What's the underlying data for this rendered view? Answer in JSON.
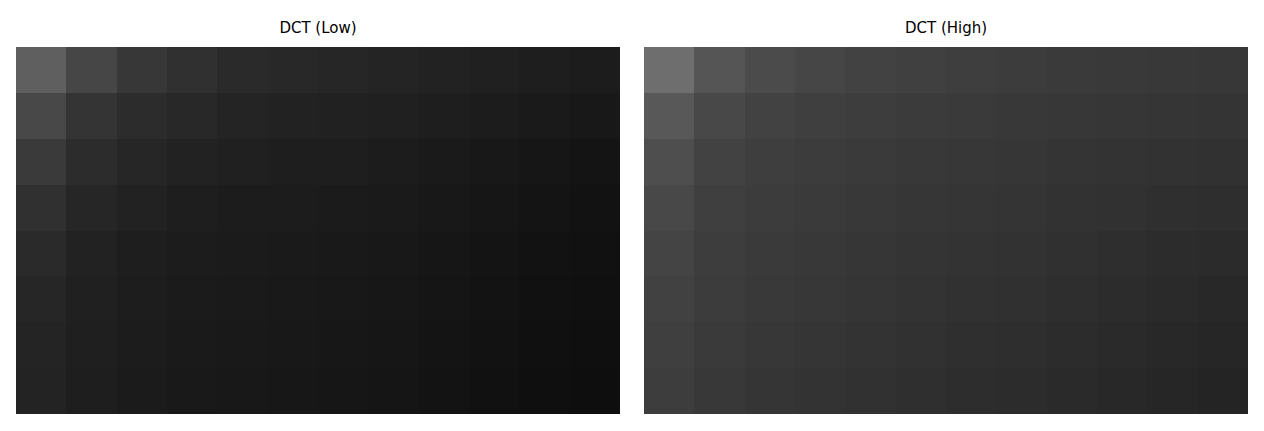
{
  "chart_data": [
    {
      "type": "heatmap",
      "title": "DCT (Low)",
      "tick_labels": false,
      "cells": [
        [
          95,
          70,
          55,
          48,
          42,
          40,
          38,
          36,
          34,
          32,
          30,
          28
        ],
        [
          72,
          52,
          44,
          40,
          36,
          34,
          33,
          32,
          30,
          28,
          26,
          24
        ],
        [
          58,
          44,
          38,
          34,
          32,
          30,
          30,
          28,
          26,
          24,
          22,
          20
        ],
        [
          48,
          38,
          34,
          30,
          28,
          28,
          27,
          26,
          24,
          22,
          20,
          18
        ],
        [
          42,
          34,
          30,
          28,
          27,
          26,
          25,
          24,
          22,
          20,
          18,
          17
        ],
        [
          38,
          32,
          29,
          27,
          26,
          25,
          24,
          23,
          21,
          19,
          17,
          16
        ],
        [
          36,
          31,
          28,
          26,
          25,
          24,
          23,
          22,
          20,
          18,
          16,
          15
        ],
        [
          35,
          30,
          27,
          25,
          24,
          23,
          22,
          21,
          19,
          17,
          15,
          14
        ]
      ]
    },
    {
      "type": "heatmap",
      "title": "DCT (High)",
      "tick_labels": false,
      "cells": [
        [
          110,
          85,
          75,
          70,
          66,
          64,
          62,
          60,
          58,
          57,
          56,
          55
        ],
        [
          88,
          72,
          66,
          63,
          61,
          59,
          58,
          56,
          55,
          54,
          53,
          52
        ],
        [
          78,
          66,
          62,
          60,
          58,
          56,
          55,
          54,
          52,
          51,
          50,
          49
        ],
        [
          72,
          63,
          60,
          58,
          56,
          54,
          53,
          52,
          50,
          49,
          47,
          46
        ],
        [
          68,
          61,
          58,
          56,
          54,
          52,
          51,
          50,
          48,
          46,
          44,
          43
        ],
        [
          65,
          60,
          57,
          55,
          53,
          51,
          49,
          48,
          46,
          44,
          42,
          40
        ],
        [
          63,
          58,
          55,
          53,
          51,
          49,
          47,
          46,
          44,
          42,
          40,
          38
        ],
        [
          61,
          56,
          53,
          51,
          49,
          47,
          45,
          44,
          42,
          40,
          38,
          36
        ]
      ]
    }
  ]
}
